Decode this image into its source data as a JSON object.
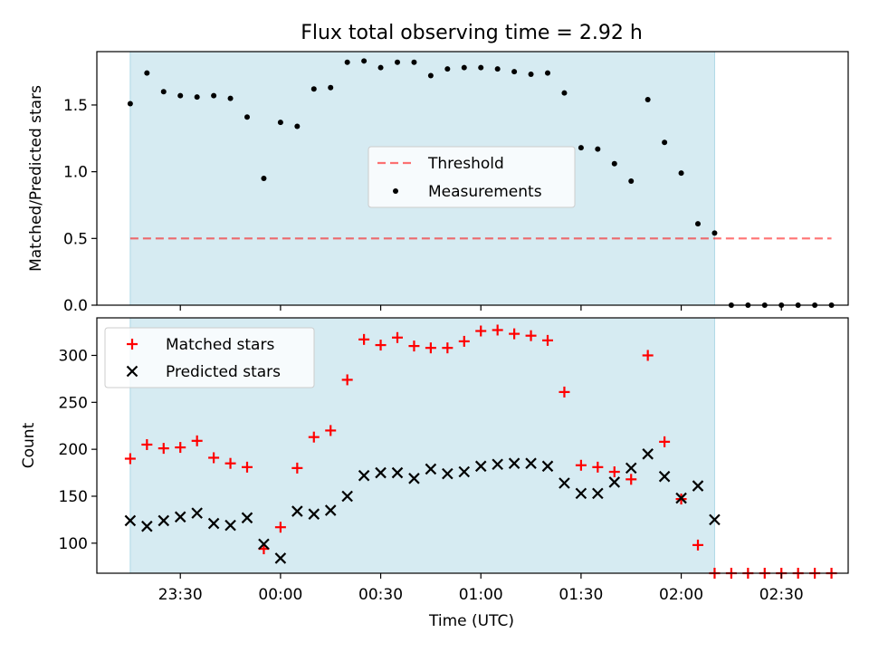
{
  "title": "Flux total observing time = 2.92 h",
  "colors": {
    "shade": "#add8e6",
    "threshold": "#ff0000",
    "measurement": "#000000",
    "matched": "#ff0000",
    "predicted": "#000000"
  },
  "chart_data": [
    {
      "type": "scatter",
      "ylabel": "Matched/Predicted stars",
      "xlabel": "",
      "ylim": [
        0.0,
        1.9
      ],
      "yticks": [
        "0.0",
        "0.5",
        "1.0",
        "1.5"
      ],
      "legend": {
        "placement": "center",
        "entries": [
          "Threshold",
          "Measurements"
        ]
      },
      "shaded_interval": [
        "23:15",
        "02:10"
      ],
      "threshold": {
        "name": "Threshold",
        "value": 0.5,
        "x_range": [
          "23:15",
          "02:45"
        ]
      },
      "series": [
        {
          "name": "Measurements",
          "points": [
            [
              "23:15",
              1.51
            ],
            [
              "23:20",
              1.74
            ],
            [
              "23:25",
              1.6
            ],
            [
              "23:30",
              1.57
            ],
            [
              "23:35",
              1.56
            ],
            [
              "23:40",
              1.57
            ],
            [
              "23:45",
              1.55
            ],
            [
              "23:50",
              1.41
            ],
            [
              "23:55",
              0.95
            ],
            [
              "00:00",
              1.37
            ],
            [
              "00:05",
              1.34
            ],
            [
              "00:10",
              1.62
            ],
            [
              "00:15",
              1.63
            ],
            [
              "00:20",
              1.82
            ],
            [
              "00:25",
              1.83
            ],
            [
              "00:30",
              1.78
            ],
            [
              "00:35",
              1.82
            ],
            [
              "00:40",
              1.82
            ],
            [
              "00:45",
              1.72
            ],
            [
              "00:50",
              1.77
            ],
            [
              "00:55",
              1.78
            ],
            [
              "01:00",
              1.78
            ],
            [
              "01:05",
              1.77
            ],
            [
              "01:10",
              1.75
            ],
            [
              "01:15",
              1.73
            ],
            [
              "01:20",
              1.74
            ],
            [
              "01:25",
              1.59
            ],
            [
              "01:30",
              1.18
            ],
            [
              "01:35",
              1.17
            ],
            [
              "01:40",
              1.06
            ],
            [
              "01:45",
              0.93
            ],
            [
              "01:50",
              1.54
            ],
            [
              "01:55",
              1.22
            ],
            [
              "02:00",
              0.99
            ],
            [
              "02:05",
              0.61
            ],
            [
              "02:10",
              0.54
            ],
            [
              "02:15",
              0.0
            ],
            [
              "02:20",
              0.0
            ],
            [
              "02:25",
              0.0
            ],
            [
              "02:30",
              0.0
            ],
            [
              "02:35",
              0.0
            ],
            [
              "02:40",
              0.0
            ],
            [
              "02:45",
              0.0
            ]
          ]
        }
      ]
    },
    {
      "type": "scatter",
      "ylabel": "Count",
      "xlabel": "Time (UTC)",
      "ylim": [
        68,
        340
      ],
      "yticks": [
        "100",
        "150",
        "200",
        "250",
        "300"
      ],
      "xticks": [
        "23:30",
        "00:00",
        "00:30",
        "01:00",
        "01:30",
        "02:00",
        "02:30"
      ],
      "xlim": [
        "23:05",
        "02:50"
      ],
      "legend": {
        "placement": "upper-left",
        "entries": [
          "Matched stars",
          "Predicted stars"
        ]
      },
      "shaded_interval": [
        "23:15",
        "02:10"
      ],
      "series": [
        {
          "name": "Matched stars",
          "points": [
            [
              "23:15",
              190
            ],
            [
              "23:20",
              205
            ],
            [
              "23:25",
              201
            ],
            [
              "23:30",
              202
            ],
            [
              "23:35",
              209
            ],
            [
              "23:40",
              191
            ],
            [
              "23:45",
              185
            ],
            [
              "23:50",
              181
            ],
            [
              "23:55",
              94
            ],
            [
              "00:00",
              117
            ],
            [
              "00:05",
              180
            ],
            [
              "00:10",
              213
            ],
            [
              "00:15",
              220
            ],
            [
              "00:20",
              274
            ],
            [
              "00:25",
              317
            ],
            [
              "00:30",
              311
            ],
            [
              "00:35",
              319
            ],
            [
              "00:40",
              310
            ],
            [
              "00:45",
              308
            ],
            [
              "00:50",
              308
            ],
            [
              "00:55",
              315
            ],
            [
              "01:00",
              326
            ],
            [
              "01:05",
              327
            ],
            [
              "01:10",
              323
            ],
            [
              "01:15",
              321
            ],
            [
              "01:20",
              316
            ],
            [
              "01:25",
              261
            ],
            [
              "01:30",
              183
            ],
            [
              "01:35",
              181
            ],
            [
              "01:40",
              176
            ],
            [
              "01:45",
              168
            ],
            [
              "01:50",
              300
            ],
            [
              "01:55",
              208
            ],
            [
              "02:00",
              147
            ],
            [
              "02:05",
              98
            ],
            [
              "02:10",
              68
            ],
            [
              "02:15",
              68
            ],
            [
              "02:20",
              68
            ],
            [
              "02:25",
              68
            ],
            [
              "02:30",
              68
            ],
            [
              "02:35",
              68
            ],
            [
              "02:40",
              68
            ],
            [
              "02:45",
              68
            ]
          ]
        },
        {
          "name": "Predicted stars",
          "points": [
            [
              "23:15",
              124
            ],
            [
              "23:20",
              118
            ],
            [
              "23:25",
              124
            ],
            [
              "23:30",
              128
            ],
            [
              "23:35",
              132
            ],
            [
              "23:40",
              121
            ],
            [
              "23:45",
              119
            ],
            [
              "23:50",
              127
            ],
            [
              "23:55",
              99
            ],
            [
              "00:00",
              84
            ],
            [
              "00:05",
              134
            ],
            [
              "00:10",
              131
            ],
            [
              "00:15",
              135
            ],
            [
              "00:20",
              150
            ],
            [
              "00:25",
              172
            ],
            [
              "00:30",
              175
            ],
            [
              "00:35",
              175
            ],
            [
              "00:40",
              169
            ],
            [
              "00:45",
              179
            ],
            [
              "00:50",
              174
            ],
            [
              "00:55",
              176
            ],
            [
              "01:00",
              182
            ],
            [
              "01:05",
              184
            ],
            [
              "01:10",
              185
            ],
            [
              "01:15",
              185
            ],
            [
              "01:20",
              182
            ],
            [
              "01:25",
              164
            ],
            [
              "01:30",
              153
            ],
            [
              "01:35",
              153
            ],
            [
              "01:40",
              165
            ],
            [
              "01:45",
              180
            ],
            [
              "01:50",
              195
            ],
            [
              "01:55",
              171
            ],
            [
              "02:00",
              148
            ],
            [
              "02:05",
              161
            ],
            [
              "02:10",
              125
            ]
          ]
        }
      ]
    }
  ]
}
